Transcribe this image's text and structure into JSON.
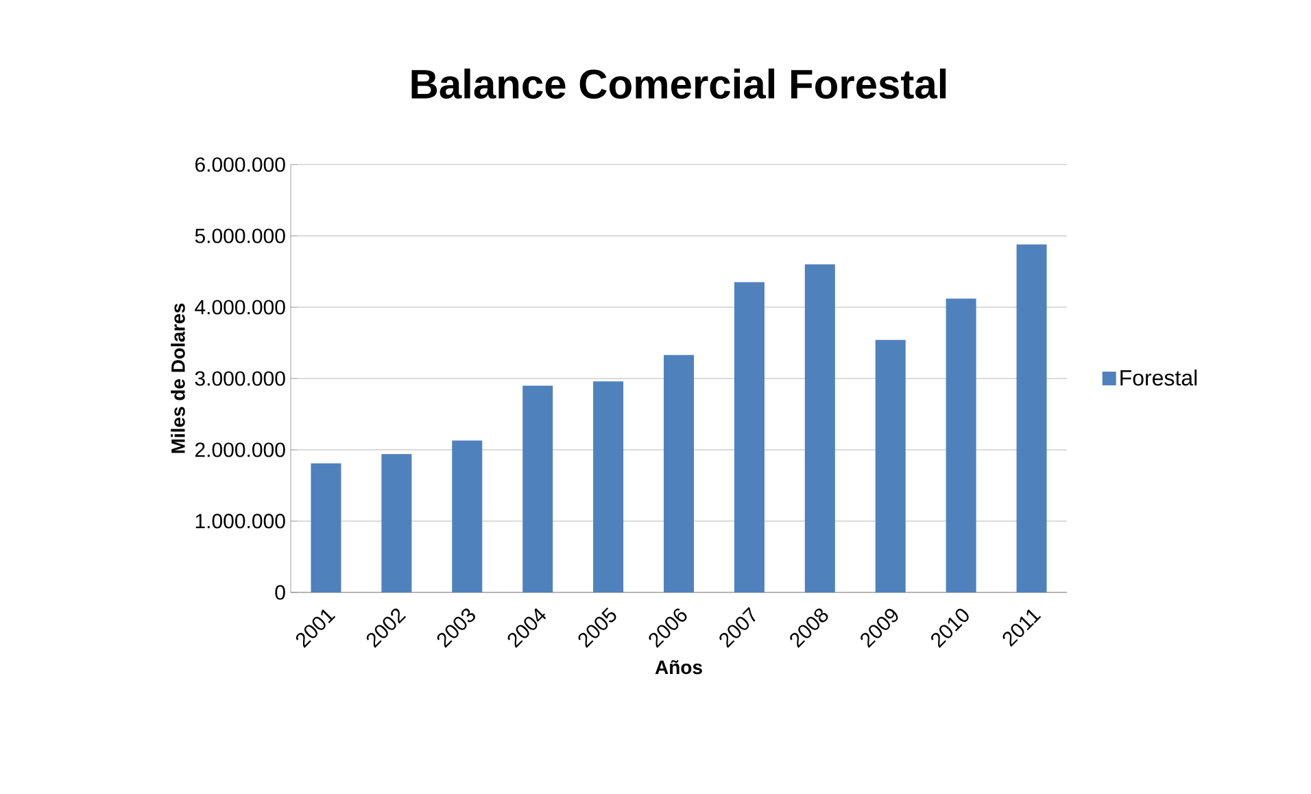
{
  "chart_data": {
    "type": "bar",
    "title": "Balance Comercial Forestal",
    "xlabel": "Años",
    "ylabel": "Miles de Dolares",
    "categories": [
      "2001",
      "2002",
      "2003",
      "2004",
      "2005",
      "2006",
      "2007",
      "2008",
      "2009",
      "2010",
      "2011"
    ],
    "series": [
      {
        "name": "Forestal",
        "color": "#4f81bd",
        "values": [
          1810000,
          1940000,
          2130000,
          2900000,
          2960000,
          3330000,
          4350000,
          4600000,
          3540000,
          4120000,
          4880000
        ]
      }
    ],
    "ylim": [
      0,
      6000000
    ],
    "yticks": [
      0,
      {
        "value": 1000000,
        "label": "1.000.000"
      },
      {
        "value": 2000000,
        "label": "2.000.000"
      },
      {
        "value": 3000000,
        "label": "3.000.000"
      },
      {
        "value": 4000000,
        "label": "4.000.000"
      },
      {
        "value": 5000000,
        "label": "5.000.000"
      },
      {
        "value": 6000000,
        "label": "6.000.000"
      }
    ],
    "grid": "y",
    "legend": "right"
  }
}
